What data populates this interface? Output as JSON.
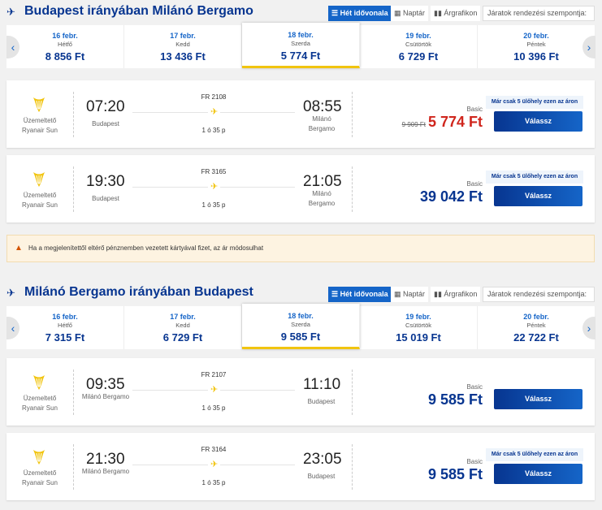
{
  "colors": {
    "brand": "#073590",
    "accent": "#1565c8",
    "discount_price": "#d0261d",
    "selected_underline": "#f1c40f"
  },
  "view_buttons": {
    "timeline": "Hét idővonala",
    "calendar": "Naptár",
    "chart": "Árgrafikon",
    "sort_placeholder": "Járatok rendezési szempontja:"
  },
  "sections": [
    {
      "title": "Budapest irányában Milánó Bergamo",
      "days": [
        {
          "date": "16 febr.",
          "weekday": "Hétfő",
          "price": "8 856 Ft"
        },
        {
          "date": "17 febr.",
          "weekday": "Kedd",
          "price": "13 436 Ft"
        },
        {
          "date": "18 febr.",
          "weekday": "Szerda",
          "price": "5 774 Ft",
          "selected": true
        },
        {
          "date": "19 febr.",
          "weekday": "Csütörtök",
          "price": "6 729 Ft"
        },
        {
          "date": "20 febr.",
          "weekday": "Péntek",
          "price": "10 396 Ft"
        }
      ],
      "flights": [
        {
          "operator_label": "Üzemeltető",
          "operator": "Ryanair Sun",
          "dep_time": "07:20",
          "dep_place": "Budapest",
          "arr_time": "08:55",
          "arr_place": "Milánó Bergamo",
          "flight_no": "FR 2108",
          "duration": "1 ó 35 p",
          "fare": "Basic",
          "old_price": "9 909 Ft",
          "price": "5 774 Ft",
          "badge": "Már csak 5 ülőhely ezen az áron",
          "button": "Válassz"
        },
        {
          "operator_label": "Üzemeltető",
          "operator": "Ryanair Sun",
          "dep_time": "19:30",
          "dep_place": "Budapest",
          "arr_time": "21:05",
          "arr_place": "Milánó Bergamo",
          "flight_no": "FR 3165",
          "duration": "1 ó 35 p",
          "fare": "Basic",
          "price": "39 042 Ft",
          "badge": "Már csak 5 ülőhely ezen az áron",
          "button": "Válassz"
        }
      ]
    },
    {
      "title": "Milánó Bergamo irányában Budapest",
      "days": [
        {
          "date": "16 febr.",
          "weekday": "Hétfő",
          "price": "7 315 Ft"
        },
        {
          "date": "17 febr.",
          "weekday": "Kedd",
          "price": "6 729 Ft"
        },
        {
          "date": "18 febr.",
          "weekday": "Szerda",
          "price": "9 585 Ft",
          "selected": true
        },
        {
          "date": "19 febr.",
          "weekday": "Csütörtök",
          "price": "15 019 Ft"
        },
        {
          "date": "20 febr.",
          "weekday": "Péntek",
          "price": "22 722 Ft"
        }
      ],
      "flights": [
        {
          "operator_label": "Üzemeltető",
          "operator": "Ryanair Sun",
          "dep_time": "09:35",
          "dep_place": "Milánó Bergamo",
          "arr_time": "11:10",
          "arr_place": "Budapest",
          "flight_no": "FR 2107",
          "duration": "1 ó 35 p",
          "fare": "Basic",
          "price": "9 585 Ft",
          "button": "Válassz"
        },
        {
          "operator_label": "Üzemeltető",
          "operator": "Ryanair Sun",
          "dep_time": "21:30",
          "dep_place": "Milánó Bergamo",
          "arr_time": "23:05",
          "arr_place": "Budapest",
          "flight_no": "FR 3164",
          "duration": "1 ó 35 p",
          "fare": "Basic",
          "price": "9 585 Ft",
          "badge": "Már csak 5 ülőhely ezen az áron",
          "button": "Válassz"
        }
      ]
    }
  ],
  "warning": "Ha a megjelenítettől eltérő pénznemben vezetett kártyával fizet, az ár módosulhat"
}
